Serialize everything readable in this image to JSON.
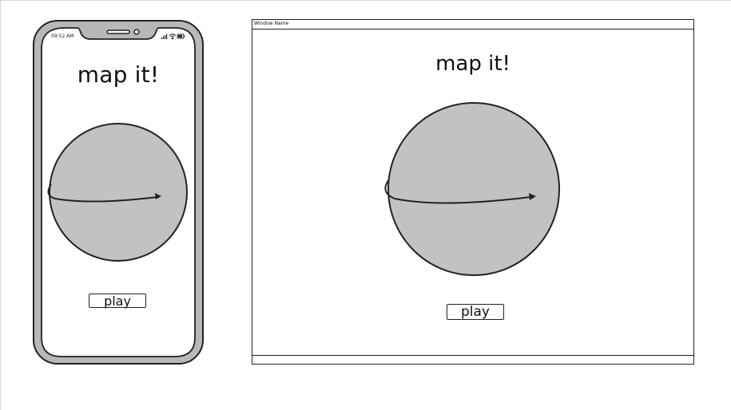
{
  "phone": {
    "status_time": "09:52 AM",
    "title": "map it!",
    "play_label": "play"
  },
  "window": {
    "name": "Window Name",
    "title": "map it!",
    "play_label": "play"
  },
  "colors": {
    "globe_fill": "#c2c2c2",
    "outline": "#222222",
    "phone_frame": "#b8b8b8",
    "background": "#ffffff"
  },
  "icons": [
    "signal-icon",
    "wifi-icon",
    "battery-icon",
    "camera-icon",
    "speaker-icon",
    "arrow-icon"
  ]
}
